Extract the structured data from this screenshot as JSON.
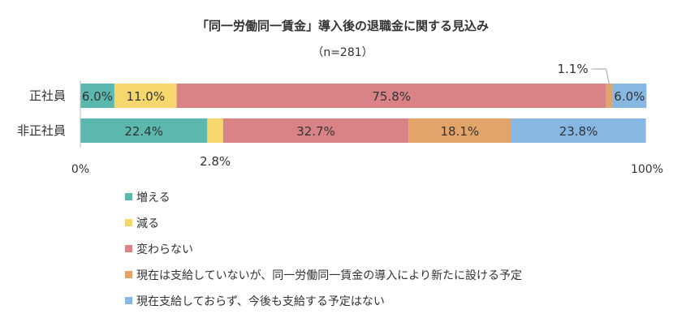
{
  "chart_data": {
    "type": "bar",
    "orientation": "horizontal",
    "stacked": true,
    "title": "「同一労働同一賃金」導入後の退職金に関する見込み",
    "subtitle": "（n=281）",
    "categories": [
      "正社員",
      "非正社員"
    ],
    "series": [
      {
        "name": "増える",
        "color": "#5BB8AE",
        "values": [
          6.0,
          22.4
        ],
        "labels": [
          "6.0%",
          "22.4%"
        ]
      },
      {
        "name": "減る",
        "color": "#F5D76E",
        "values": [
          11.0,
          2.8
        ],
        "labels": [
          "11.0%",
          "2.8%"
        ]
      },
      {
        "name": "変わらない",
        "color": "#D98387",
        "values": [
          75.8,
          32.7
        ],
        "labels": [
          "75.8%",
          "32.7%"
        ]
      },
      {
        "name": "現在は支給していないが、同一労働同一賃金の導入により新たに設ける予定",
        "color": "#E3A46A",
        "values": [
          1.1,
          18.1
        ],
        "labels": [
          "1.1%",
          "18.1%"
        ]
      },
      {
        "name": "現在支給しておらず、今後も支給する予定はない",
        "color": "#86B8E3",
        "values": [
          6.0,
          23.8
        ],
        "labels": [
          "6.0%",
          "23.8%"
        ]
      }
    ],
    "xlim": [
      0,
      100
    ],
    "x_ticks": [
      "0%",
      "100%"
    ],
    "grid": false,
    "legend": "bottom"
  }
}
